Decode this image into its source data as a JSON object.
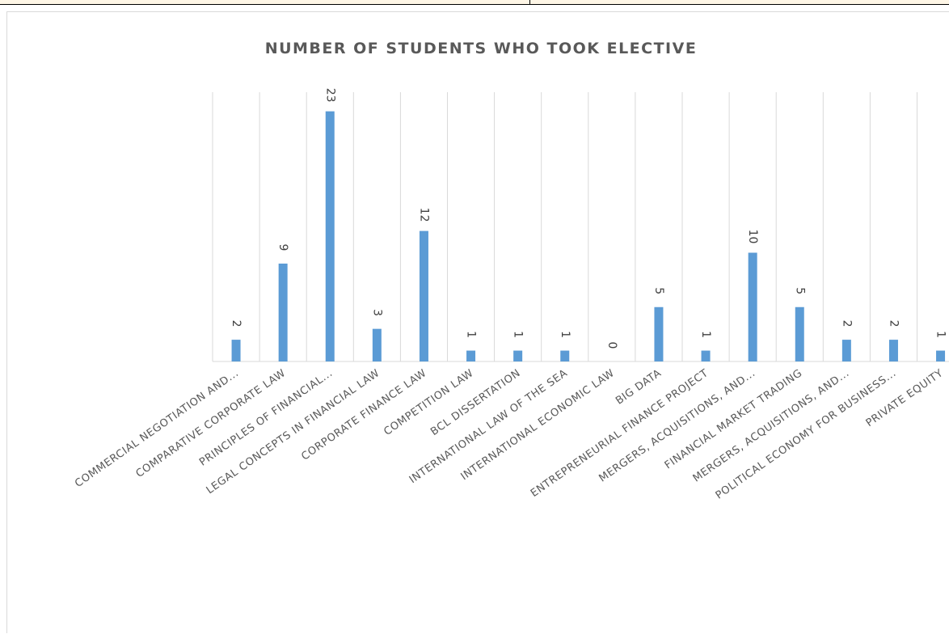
{
  "chart_data": {
    "type": "bar",
    "title": "NUMBER OF STUDENTS WHO TOOK ELECTIVE",
    "xlabel": "",
    "ylabel": "",
    "categories": [
      "COMMERCIAL NEGOTIATION AND...",
      "COMPARATIVE CORPORATE LAW",
      "PRINCIPLES OF FINANCIAL...",
      "LEGAL CONCEPTS IN FINANCIAL LAW",
      "CORPORATE FINANCE LAW",
      "COMPETITION LAW",
      "BCL DISSERTATION",
      "INTERNATIONAL LAW OF THE SEA",
      "INTERNATIONAL ECONOMIC LAW",
      "BIG DATA",
      "ENTREPRENEURIAL FINANCE PROJECT",
      "MERGERS, ACQUISITIONS, AND...",
      "FINANCIAL MARKET TRADING",
      "MERGERS, ACQUISITIONS, AND...",
      "POLITICAL ECONOMY FOR BUSINESS...",
      "PRIVATE EQUITY"
    ],
    "values": [
      2,
      9,
      23,
      3,
      12,
      1,
      1,
      1,
      0,
      5,
      1,
      10,
      5,
      2,
      2,
      1
    ],
    "ylim": [
      0,
      24
    ],
    "grid": "vertical category separators",
    "color": "#5b9bd5"
  }
}
